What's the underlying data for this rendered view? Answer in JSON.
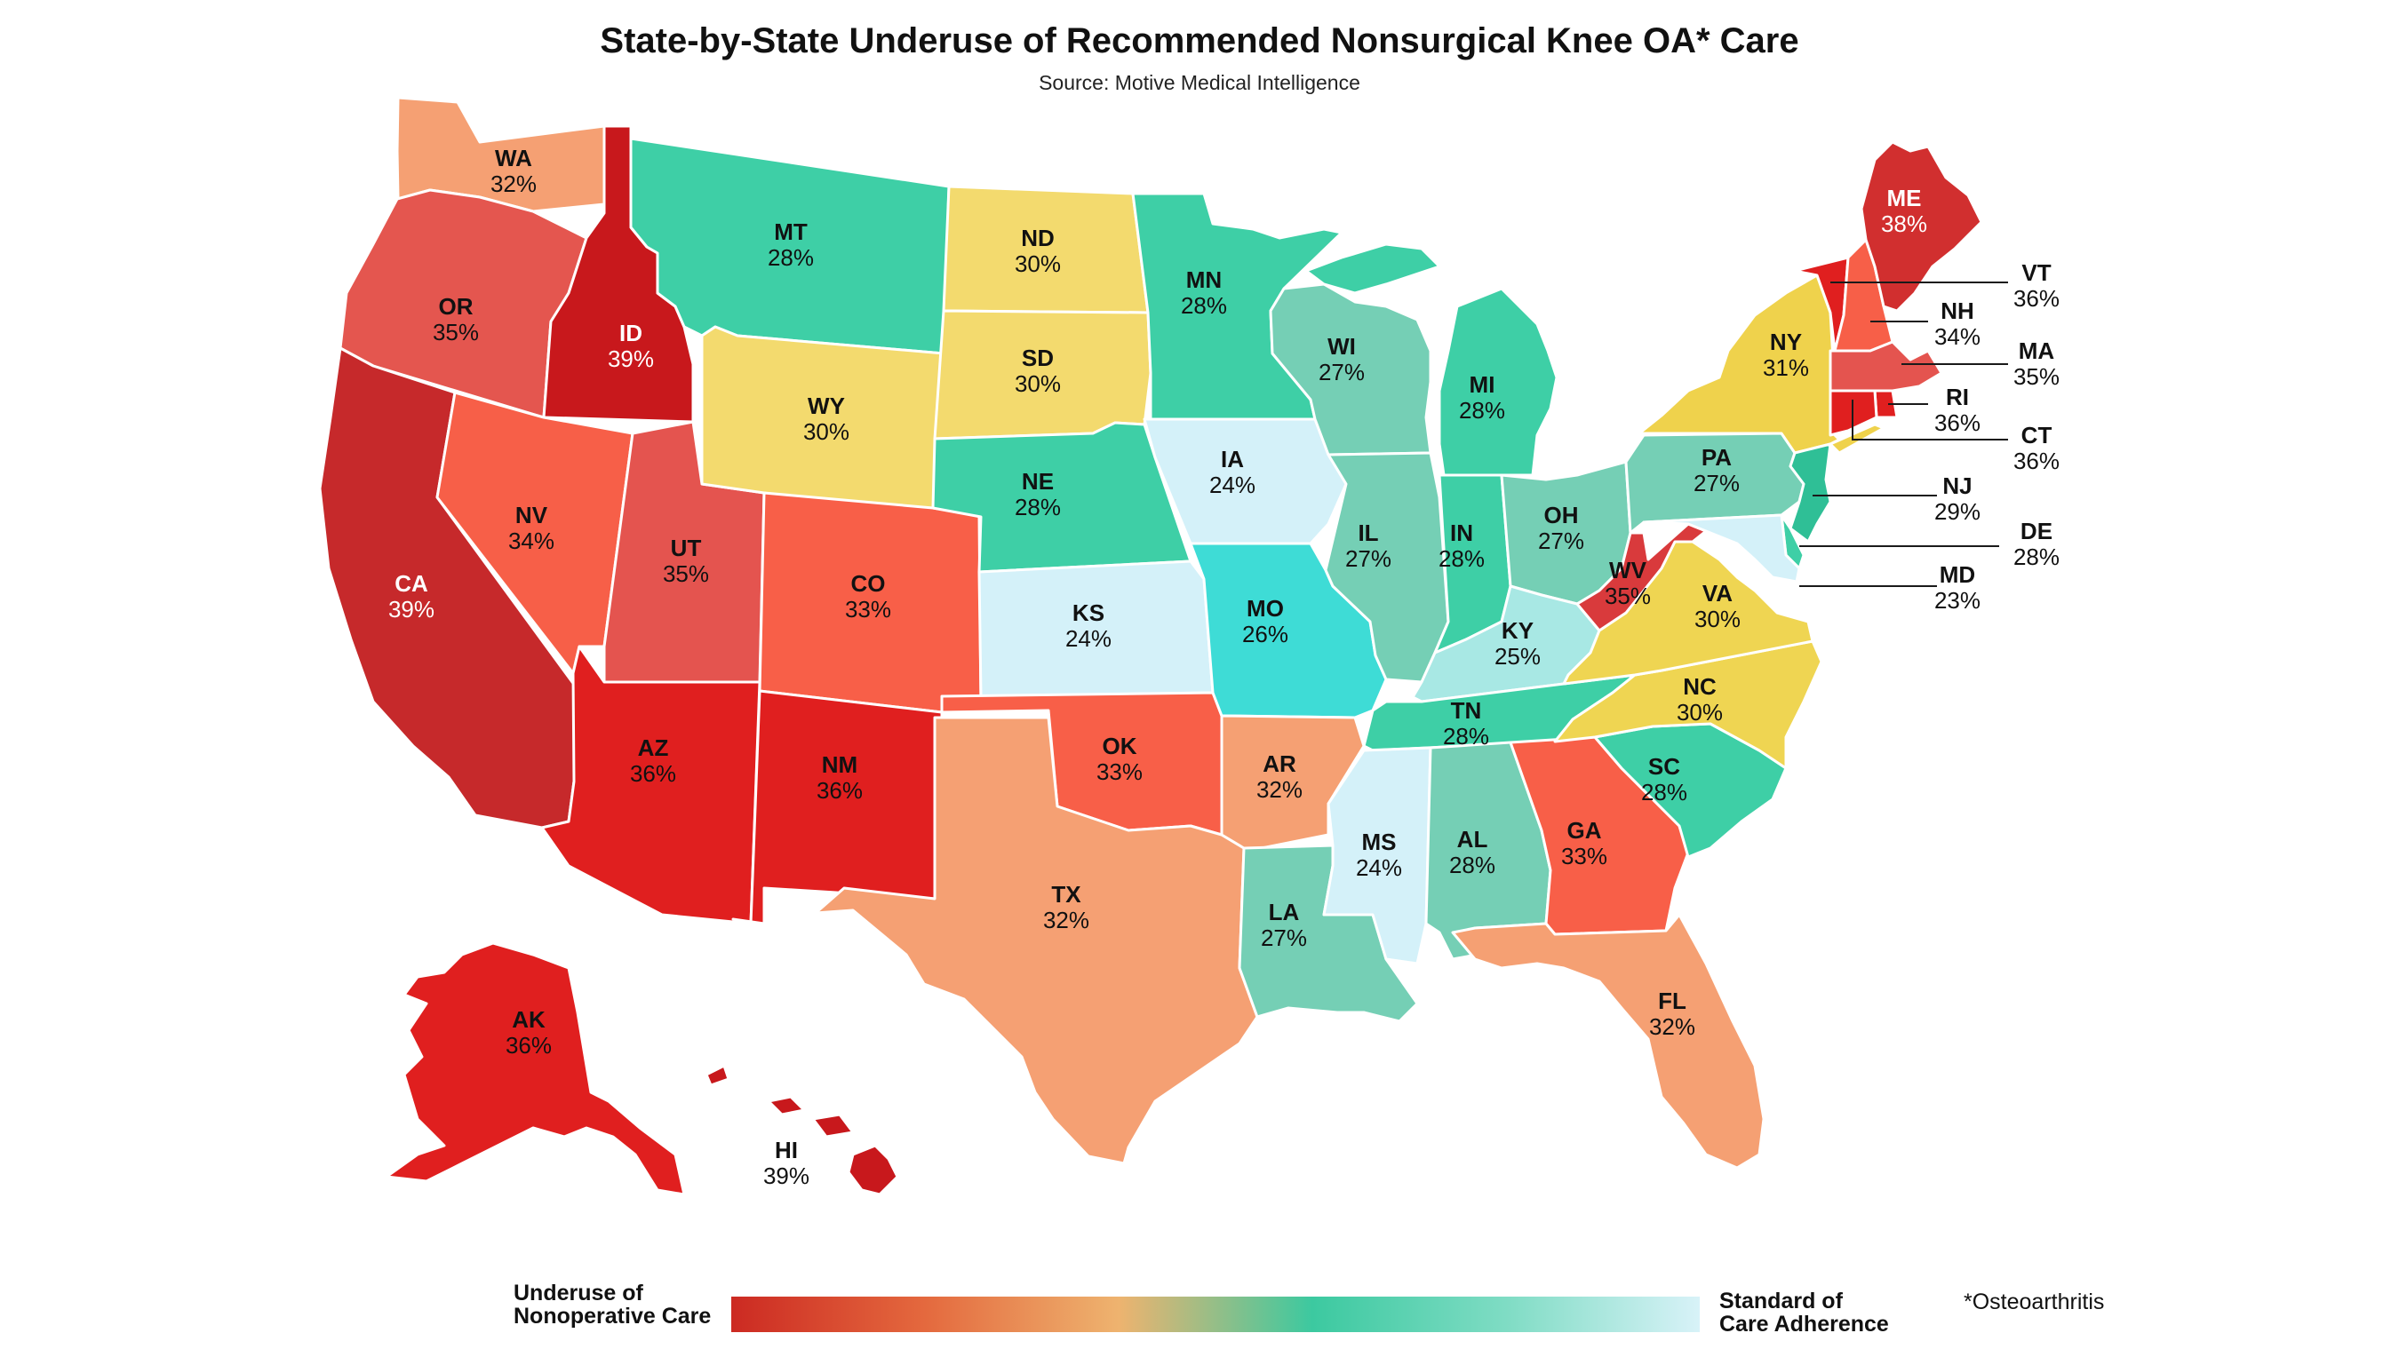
{
  "title": "State-by-State Underuse of Recommended Nonsurgical Knee OA* Care",
  "subtitle": "Source: Motive Medical Intelligence",
  "legend": {
    "left_label_line1": "Underuse of",
    "left_label_line2": "Nonoperative Care",
    "right_label_line1": "Standard of",
    "right_label_line2": "Care Adherence",
    "gradient_colors": [
      "#cc2a22",
      "#e4693e",
      "#eeb36f",
      "#3cc9a0",
      "#7fdcc4",
      "#d8f2f8"
    ]
  },
  "footnote": "*Osteoarthritis",
  "states": {
    "WA": {
      "abbr": "WA",
      "pct": "32%",
      "color": "#f5a073"
    },
    "OR": {
      "abbr": "OR",
      "pct": "35%",
      "color": "#e4564f"
    },
    "CA": {
      "abbr": "CA",
      "pct": "39%",
      "color": "#c6292b"
    },
    "ID": {
      "abbr": "ID",
      "pct": "39%",
      "color": "#c8181c"
    },
    "NV": {
      "abbr": "NV",
      "pct": "34%",
      "color": "#f75f48"
    },
    "UT": {
      "abbr": "UT",
      "pct": "35%",
      "color": "#e4544f"
    },
    "AZ": {
      "abbr": "AZ",
      "pct": "36%",
      "color": "#e01f1f"
    },
    "MT": {
      "abbr": "MT",
      "pct": "28%",
      "color": "#3ecfa6"
    },
    "WY": {
      "abbr": "WY",
      "pct": "30%",
      "color": "#f3da6e"
    },
    "CO": {
      "abbr": "CO",
      "pct": "33%",
      "color": "#f85f48"
    },
    "NM": {
      "abbr": "NM",
      "pct": "36%",
      "color": "#e01f1f"
    },
    "ND": {
      "abbr": "ND",
      "pct": "30%",
      "color": "#f3da6e"
    },
    "SD": {
      "abbr": "SD",
      "pct": "30%",
      "color": "#f3da6e"
    },
    "NE": {
      "abbr": "NE",
      "pct": "28%",
      "color": "#3ecfa6"
    },
    "KS": {
      "abbr": "KS",
      "pct": "24%",
      "color": "#d4f1f9"
    },
    "OK": {
      "abbr": "OK",
      "pct": "33%",
      "color": "#f85f48"
    },
    "TX": {
      "abbr": "TX",
      "pct": "32%",
      "color": "#f5a073"
    },
    "MN": {
      "abbr": "MN",
      "pct": "28%",
      "color": "#3ecfa6"
    },
    "IA": {
      "abbr": "IA",
      "pct": "24%",
      "color": "#d4f1f9"
    },
    "MO": {
      "abbr": "MO",
      "pct": "26%",
      "color": "#3edcd6"
    },
    "AR": {
      "abbr": "AR",
      "pct": "32%",
      "color": "#f5a073"
    },
    "LA": {
      "abbr": "LA",
      "pct": "27%",
      "color": "#75cfb5"
    },
    "WI": {
      "abbr": "WI",
      "pct": "27%",
      "color": "#75cfb5"
    },
    "IL": {
      "abbr": "IL",
      "pct": "27%",
      "color": "#75cfb5"
    },
    "MI": {
      "abbr": "MI",
      "pct": "28%",
      "color": "#3ecfa6"
    },
    "IN": {
      "abbr": "IN",
      "pct": "28%",
      "color": "#3ecfa6"
    },
    "OH": {
      "abbr": "OH",
      "pct": "27%",
      "color": "#75cfb5"
    },
    "KY": {
      "abbr": "KY",
      "pct": "25%",
      "color": "#a8e8e4"
    },
    "TN": {
      "abbr": "TN",
      "pct": "28%",
      "color": "#3ecfa6"
    },
    "MS": {
      "abbr": "MS",
      "pct": "24%",
      "color": "#d4f1f9"
    },
    "AL": {
      "abbr": "AL",
      "pct": "28%",
      "color": "#75cfb5"
    },
    "GA": {
      "abbr": "GA",
      "pct": "33%",
      "color": "#f85f48"
    },
    "FL": {
      "abbr": "FL",
      "pct": "32%",
      "color": "#f5a073"
    },
    "SC": {
      "abbr": "SC",
      "pct": "28%",
      "color": "#3ecfa6"
    },
    "NC": {
      "abbr": "NC",
      "pct": "30%",
      "color": "#efd552"
    },
    "VA": {
      "abbr": "VA",
      "pct": "30%",
      "color": "#efd552"
    },
    "WV": {
      "abbr": "WV",
      "pct": "35%",
      "color": "#d93a3c"
    },
    "PA": {
      "abbr": "PA",
      "pct": "27%",
      "color": "#75cfb5"
    },
    "NY": {
      "abbr": "NY",
      "pct": "31%",
      "color": "#efd24c"
    },
    "ME": {
      "abbr": "ME",
      "pct": "38%",
      "color": "#d12f2f"
    },
    "VT": {
      "abbr": "VT",
      "pct": "36%",
      "color": "#e01f1f"
    },
    "NH": {
      "abbr": "NH",
      "pct": "34%",
      "color": "#f75f48"
    },
    "MA": {
      "abbr": "MA",
      "pct": "35%",
      "color": "#e4544f"
    },
    "RI": {
      "abbr": "RI",
      "pct": "36%",
      "color": "#e01f1f"
    },
    "CT": {
      "abbr": "CT",
      "pct": "36%",
      "color": "#e01f1f"
    },
    "NJ": {
      "abbr": "NJ",
      "pct": "29%",
      "color": "#2fbf96"
    },
    "DE": {
      "abbr": "DE",
      "pct": "28%",
      "color": "#3ecfa6"
    },
    "MD": {
      "abbr": "MD",
      "pct": "23%",
      "color": "#d4f1f9"
    },
    "AK": {
      "abbr": "AK",
      "pct": "36%",
      "color": "#e01f1f"
    },
    "HI": {
      "abbr": "HI",
      "pct": "39%",
      "color": "#c8181c"
    }
  }
}
